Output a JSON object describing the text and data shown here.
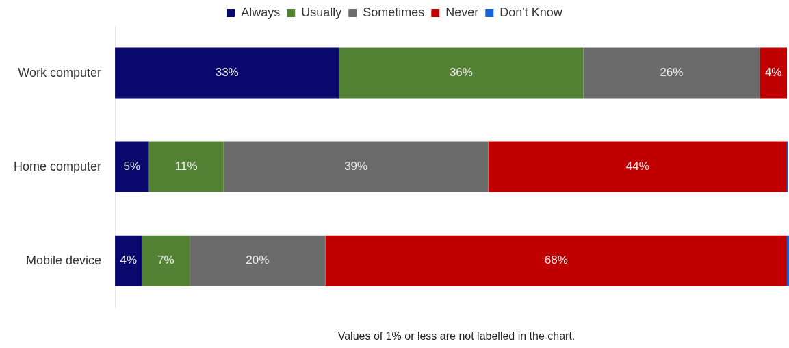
{
  "chart_data": {
    "type": "bar",
    "orientation": "horizontal",
    "stacked": true,
    "categories": [
      "Work computer",
      "Home computer",
      "Mobile device"
    ],
    "series": [
      {
        "name": "Always",
        "color": "#0a0a6e",
        "values": [
          33,
          5,
          4
        ],
        "value_labels": [
          "33%",
          "5%",
          "4%"
        ]
      },
      {
        "name": "Usually",
        "color": "#548235",
        "values": [
          36,
          11,
          7
        ],
        "value_labels": [
          "36%",
          "11%",
          "7%"
        ]
      },
      {
        "name": "Sometimes",
        "color": "#6b6b6b",
        "values": [
          26,
          39,
          20
        ],
        "value_labels": [
          "26%",
          "39%",
          "20%"
        ]
      },
      {
        "name": "Never",
        "color": "#c00000",
        "values": [
          4,
          44,
          68
        ],
        "value_labels": [
          "4%",
          "44%",
          "68%"
        ]
      },
      {
        "name": "Don't Know",
        "color": "#1565d8",
        "values": [
          0,
          0.2,
          0.3
        ],
        "value_labels": [
          null,
          null,
          null
        ]
      }
    ],
    "xlim": [
      0,
      99.3
    ],
    "tick_labels": "y",
    "legend": "top",
    "annotations": [
      "Values of 1% or less are not labelled in the chart."
    ]
  }
}
